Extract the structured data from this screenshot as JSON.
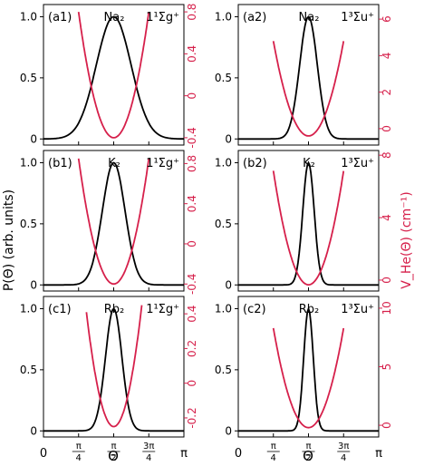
{
  "figure": {
    "ylabel_left": "P(Θ) (arb. units)",
    "ylabel_right": "V_He(Θ) (cm⁻¹)",
    "xlabel": "Θ",
    "colors": {
      "probability": "#000000",
      "potential": "#d6204b"
    },
    "x_tick_labels": [
      "0",
      "π/4",
      "π/2",
      "3π/4",
      "π"
    ]
  },
  "chart_data": [
    {
      "type": "line",
      "panel": "(a1)",
      "molecule": "Na₂",
      "state": "1¹Σg⁺",
      "xlim": [
        0,
        3.1416
      ],
      "ylim_left": [
        -0.05,
        1.1
      ],
      "yticks_left": [
        "0",
        "0.5",
        "1.0"
      ],
      "ylim_right": [
        -0.47,
        0.87
      ],
      "yticks_right": [
        "-0.4",
        "0",
        "0.4",
        "0.8"
      ],
      "series": [
        {
          "axis": "left",
          "shape": "gaussian",
          "center": 1.5708,
          "width": 0.55,
          "peak": 1.0,
          "x_range": [
            0,
            3.1416
          ]
        },
        {
          "axis": "right",
          "shape": "parabola",
          "center": 1.5708,
          "min": -0.4,
          "value_at_edge": 0.8,
          "x_range": [
            0.785,
            2.356
          ]
        }
      ]
    },
    {
      "type": "line",
      "panel": "(a2)",
      "molecule": "Na₂",
      "state": "1³Σu⁺",
      "xlim": [
        0,
        3.1416
      ],
      "ylim_left": [
        -0.05,
        1.1
      ],
      "yticks_left": [
        "0",
        "0.5",
        "1.0"
      ],
      "ylim_right": [
        -0.9,
        6.8
      ],
      "yticks_right": [
        "0",
        "2",
        "4",
        "6"
      ],
      "series": [
        {
          "axis": "left",
          "shape": "gaussian",
          "center": 1.5708,
          "width": 0.28,
          "peak": 1.0,
          "x_range": [
            0,
            3.1416
          ]
        },
        {
          "axis": "right",
          "shape": "parabola",
          "center": 1.5708,
          "min": -0.4,
          "value_at_edge": 4.8,
          "x_range": [
            0.785,
            2.356
          ]
        }
      ]
    },
    {
      "type": "line",
      "panel": "(b1)",
      "molecule": "K₂",
      "state": "1¹Σg⁺",
      "xlim": [
        0,
        3.1416
      ],
      "ylim_left": [
        -0.05,
        1.1
      ],
      "yticks_left": [
        "0",
        "0.5",
        "1.0"
      ],
      "ylim_right": [
        -0.47,
        0.93
      ],
      "yticks_right": [
        "-0.4",
        "0",
        "0.4",
        "0.8"
      ],
      "series": [
        {
          "axis": "left",
          "shape": "gaussian",
          "center": 1.5708,
          "width": 0.36,
          "peak": 1.0,
          "x_range": [
            0,
            3.1416
          ]
        },
        {
          "axis": "right",
          "shape": "parabola",
          "center": 1.5708,
          "min": -0.4,
          "value_at_edge": 0.85,
          "x_range": [
            0.785,
            2.356
          ]
        }
      ]
    },
    {
      "type": "line",
      "panel": "(b2)",
      "molecule": "K₂",
      "state": "1³Σu⁺",
      "xlim": [
        0,
        3.1416
      ],
      "ylim_left": [
        -0.05,
        1.1
      ],
      "yticks_left": [
        "0",
        "0.5",
        "1.0"
      ],
      "ylim_right": [
        -0.7,
        8.3
      ],
      "yticks_right": [
        "0",
        "4",
        "8"
      ],
      "series": [
        {
          "axis": "left",
          "shape": "gaussian",
          "center": 1.5708,
          "width": 0.18,
          "peak": 1.0,
          "x_range": [
            0,
            3.1416
          ]
        },
        {
          "axis": "right",
          "shape": "parabola",
          "center": 1.5708,
          "min": -0.3,
          "value_at_edge": 7.0,
          "x_range": [
            0.785,
            2.356
          ]
        }
      ]
    },
    {
      "type": "line",
      "panel": "(c1)",
      "molecule": "Rb₂",
      "state": "1¹Σg⁺",
      "xlim": [
        0,
        3.1416
      ],
      "ylim_left": [
        -0.05,
        1.1
      ],
      "yticks_left": [
        "0",
        "0.5",
        "1.0"
      ],
      "ylim_right": [
        -0.31,
        0.5
      ],
      "yticks_right": [
        "-0.2",
        "0",
        "0.2",
        "0.4"
      ],
      "series": [
        {
          "axis": "left",
          "shape": "gaussian",
          "center": 1.5708,
          "width": 0.26,
          "peak": 1.0,
          "x_range": [
            0,
            3.1416
          ]
        },
        {
          "axis": "right",
          "shape": "parabola",
          "center": 1.5708,
          "min": -0.25,
          "value_at_edge": 0.45,
          "x_range": [
            0.96,
            2.2
          ]
        }
      ]
    },
    {
      "type": "line",
      "panel": "(c2)",
      "molecule": "Rb₂",
      "state": "1³Σu⁺",
      "xlim": [
        0,
        3.1416
      ],
      "ylim_left": [
        -0.05,
        1.1
      ],
      "yticks_left": [
        "0",
        "0.5",
        "1.0"
      ],
      "ylim_right": [
        -1.0,
        11.0
      ],
      "yticks_right": [
        "0",
        "5",
        "10"
      ],
      "series": [
        {
          "axis": "left",
          "shape": "gaussian",
          "center": 1.5708,
          "width": 0.15,
          "peak": 1.0,
          "x_range": [
            0,
            3.1416
          ]
        },
        {
          "axis": "right",
          "shape": "parabola",
          "center": 1.5708,
          "min": -0.2,
          "value_at_edge": 8.3,
          "x_range": [
            0.785,
            2.356
          ]
        }
      ]
    }
  ]
}
